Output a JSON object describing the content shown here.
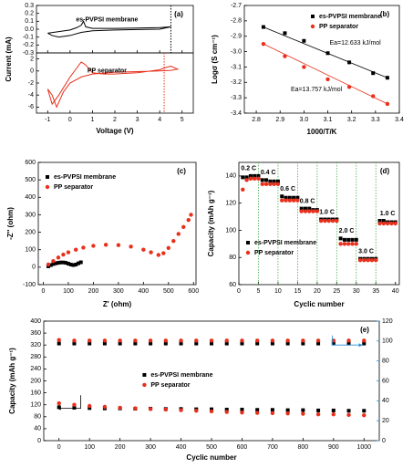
{
  "chart_data": [
    {
      "type": "line",
      "panel_label": "(a)",
      "xlabel": "Voltage (V)",
      "ylabel": "Current (mA)",
      "xlim": [
        -1.5,
        5.5
      ],
      "xticks": [
        -1,
        0,
        1,
        2,
        3,
        4,
        5
      ],
      "subplots": [
        {
          "ylim": [
            -0.3,
            0.3
          ],
          "yticks": [
            0.3,
            0.2,
            0.1,
            {
              "value": 0,
              "label": "0.0"
            },
            -0.1,
            -0.2,
            -0.3
          ],
          "vline": 4.5,
          "vline_color": "#000000",
          "series": [
            {
              "name": "es-PVPSI membrane",
              "color": "#000000",
              "x": [
                -1,
                -0.5,
                0,
                0.3,
                0.5,
                0.6,
                0.7,
                1,
                2,
                3,
                4,
                4.5,
                4,
                3,
                2,
                1,
                0.5,
                0,
                -0.5,
                -0.8,
                -1
              ],
              "values": [
                -0.05,
                -0.03,
                -0.01,
                0.02,
                0.05,
                0.1,
                0.03,
                0.01,
                0.01,
                0.015,
                0.02,
                0.03,
                0.0,
                -0.005,
                -0.01,
                -0.02,
                -0.04,
                -0.08,
                -0.1,
                -0.08,
                -0.05
              ]
            }
          ]
        },
        {
          "ylim": [
            -7,
            3
          ],
          "yticks": [
            2,
            0,
            -2,
            -4,
            -6
          ],
          "vline": 4.2,
          "vline_color": "#e8301c",
          "series": [
            {
              "name": "PP separator",
              "color": "#e8301c",
              "x": [
                -1,
                -0.8,
                -0.5,
                0,
                0.3,
                0.5,
                0.7,
                1,
                1.5,
                2,
                3,
                4,
                4.2,
                4.5,
                4.8,
                4.5,
                4,
                3,
                2,
                1,
                0.5,
                0,
                -0.3,
                -0.6,
                -0.8,
                -1
              ],
              "values": [
                -3,
                -5.5,
                -4,
                -1,
                0.5,
                1.5,
                1,
                -0.3,
                -0.5,
                -0.5,
                -0.3,
                0.2,
                0.5,
                0.8,
                0.3,
                0.1,
                0,
                -0.1,
                -0.2,
                -0.5,
                -1,
                -2,
                -3.5,
                -6,
                -4,
                -3
              ]
            }
          ]
        }
      ]
    },
    {
      "type": "scatter",
      "panel_label": "(b)",
      "xlabel": "1000/T/K",
      "ylabel": "Logσ (S cm⁻¹)",
      "xlim": [
        2.75,
        3.4
      ],
      "xticks": [
        2.8,
        2.9,
        {
          "value": 3,
          "label": "3.0"
        },
        3.1,
        3.2,
        3.3,
        3.4
      ],
      "ylim": [
        -3.4,
        -2.7
      ],
      "yticks": [
        -2.7,
        -2.8,
        -2.9,
        {
          "value": -3,
          "label": "-3.0"
        },
        -3.1,
        -3.2,
        -3.3,
        -3.4
      ],
      "legend": "upper right",
      "fit_lines": true,
      "x": [
        2.83,
        2.92,
        3.0,
        3.1,
        3.19,
        3.29,
        3.35
      ],
      "series": [
        {
          "name": "es-PVPSI membrane",
          "color": "#000000",
          "marker": "square",
          "values": [
            -2.84,
            -2.88,
            -2.93,
            -3.01,
            -3.07,
            -3.14,
            -3.17
          ]
        },
        {
          "name": "PP separator",
          "color": "#e8301c",
          "marker": "circle",
          "values": [
            -2.95,
            -3.03,
            -3.1,
            -3.18,
            -3.23,
            -3.29,
            -3.34
          ]
        }
      ],
      "annotations": [
        {
          "text": "Ea=12.633 kJ/mol",
          "color": "#000000"
        },
        {
          "text": "Ea=13.757 kJ/mol",
          "color": "#e8301c"
        }
      ]
    },
    {
      "type": "scatter",
      "panel_label": "(c)",
      "xlabel": "Z' (ohm)",
      "ylabel": "-Z'' (ohm)",
      "xlim": [
        -20,
        610
      ],
      "xticks": [
        0,
        100,
        200,
        300,
        400,
        500,
        600
      ],
      "ylim": [
        -100,
        600
      ],
      "yticks": [
        -100,
        0,
        100,
        200,
        300,
        400,
        500,
        600
      ],
      "legend": "upper left",
      "series": [
        {
          "name": "es-PVPSI membrane",
          "color": "#000000",
          "marker": "square",
          "x": [
            20,
            30,
            40,
            50,
            60,
            70,
            80,
            90,
            100,
            110,
            120,
            130,
            140,
            150
          ],
          "values": [
            5,
            12,
            18,
            22,
            25,
            27,
            27,
            25,
            20,
            15,
            12,
            15,
            22,
            28
          ]
        },
        {
          "name": "PP separator",
          "color": "#e8301c",
          "marker": "circle",
          "x": [
            20,
            40,
            60,
            80,
            100,
            130,
            160,
            200,
            250,
            300,
            350,
            400,
            430,
            460,
            480,
            500,
            520,
            540,
            560,
            580,
            590
          ],
          "values": [
            15,
            35,
            55,
            72,
            85,
            100,
            112,
            122,
            128,
            126,
            118,
            100,
            85,
            70,
            80,
            110,
            150,
            190,
            230,
            270,
            300
          ]
        }
      ]
    },
    {
      "type": "scatter",
      "panel_label": "(d)",
      "xlabel": "Cyclic number",
      "ylabel": "Capacity (mAh g⁻¹)",
      "xlim": [
        0,
        41
      ],
      "xticks": [
        0,
        5,
        10,
        15,
        20,
        25,
        30,
        35,
        40
      ],
      "ylim": [
        60,
        150
      ],
      "yticks": [
        60,
        80,
        100,
        120,
        140
      ],
      "legend": "lower left",
      "vlines": [
        5,
        10,
        15,
        20,
        25,
        30,
        35
      ],
      "rate_labels": [
        "0.2 C",
        "0.4 C",
        "0.6 C",
        "0.8 C",
        "1.0 C",
        "2.0 C",
        "3.0 C",
        "1.0 C"
      ],
      "x": [
        1,
        2,
        3,
        4,
        5,
        6,
        7,
        8,
        9,
        10,
        11,
        12,
        13,
        14,
        15,
        16,
        17,
        18,
        19,
        20,
        21,
        22,
        23,
        24,
        25,
        26,
        27,
        28,
        29,
        30,
        31,
        32,
        33,
        34,
        35,
        36,
        37,
        38,
        39,
        40
      ],
      "series": [
        {
          "name": "es-PVPSI membrane",
          "color": "#000000",
          "marker": "square",
          "values": [
            139,
            139,
            140,
            140,
            140,
            137,
            137,
            136,
            136,
            136,
            125,
            124,
            124,
            124,
            124,
            116,
            116,
            116,
            115,
            115,
            108,
            108,
            108,
            108,
            108,
            94,
            93,
            93,
            93,
            93,
            79,
            79,
            79,
            79,
            79,
            107,
            107,
            106,
            106,
            106
          ]
        },
        {
          "name": "PP separator",
          "color": "#e8301c",
          "marker": "circle",
          "values": [
            130,
            137,
            138,
            138,
            138,
            134,
            134,
            134,
            134,
            134,
            122,
            122,
            122,
            122,
            122,
            114,
            114,
            114,
            114,
            114,
            107,
            107,
            107,
            107,
            107,
            90,
            90,
            90,
            90,
            90,
            78,
            78,
            78,
            78,
            78,
            105,
            105,
            105,
            105,
            105
          ]
        }
      ]
    },
    {
      "type": "scatter",
      "panel_label": "(e)",
      "xlabel": "Cyclic number",
      "ylabel": "Capacity (mAh g⁻¹)",
      "xlim": [
        -50,
        1050
      ],
      "xticks": [
        0,
        100,
        200,
        300,
        400,
        500,
        600,
        700,
        800,
        900,
        1000
      ],
      "ylim": [
        0,
        400
      ],
      "yticks": [
        0,
        40,
        80,
        120,
        160,
        200,
        240,
        280,
        320,
        360,
        400
      ],
      "y2lim": [
        0,
        120
      ],
      "y2ticks": [
        0,
        20,
        40,
        60,
        80,
        100,
        120
      ],
      "y2color": "#2a8fd6",
      "legend": "center",
      "x": [
        0,
        50,
        100,
        150,
        200,
        250,
        300,
        350,
        400,
        450,
        500,
        550,
        600,
        650,
        700,
        750,
        800,
        850,
        900,
        950,
        1000
      ],
      "series": [
        {
          "name": "es-PVPSI membrane",
          "color": "#000000",
          "marker": "square",
          "values": [
            112,
            110,
            109,
            108,
            108,
            107,
            107,
            106,
            106,
            105,
            105,
            104,
            104,
            103,
            103,
            102,
            102,
            101,
            101,
            100,
            100
          ]
        },
        {
          "name": "PP separator",
          "color": "#e8301c",
          "marker": "circle",
          "values": [
            125,
            120,
            116,
            113,
            110,
            108,
            106,
            104,
            102,
            100,
            98,
            96,
            94,
            93,
            92,
            91,
            90,
            88,
            88,
            86,
            85
          ]
        },
        {
          "color": "#000000",
          "marker": "square",
          "axis": "y2",
          "values": [
            97.5,
            97.5,
            97.5,
            97.5,
            97.5,
            97.5,
            97.5,
            97.5,
            97.5,
            97.5,
            97.5,
            97.5,
            97.5,
            97.5,
            97.5,
            97.5,
            97.5,
            97.5,
            97.5,
            97.5,
            97.5
          ]
        },
        {
          "color": "#e8301c",
          "marker": "circle",
          "axis": "y2",
          "values": [
            101,
            100.5,
            100.5,
            100.5,
            100.5,
            100.5,
            100.5,
            100.5,
            100.5,
            100.5,
            100.5,
            100.5,
            100.5,
            100.5,
            100.5,
            100.5,
            100.5,
            100.5,
            100.5,
            100.5,
            100.5
          ]
        }
      ]
    }
  ]
}
